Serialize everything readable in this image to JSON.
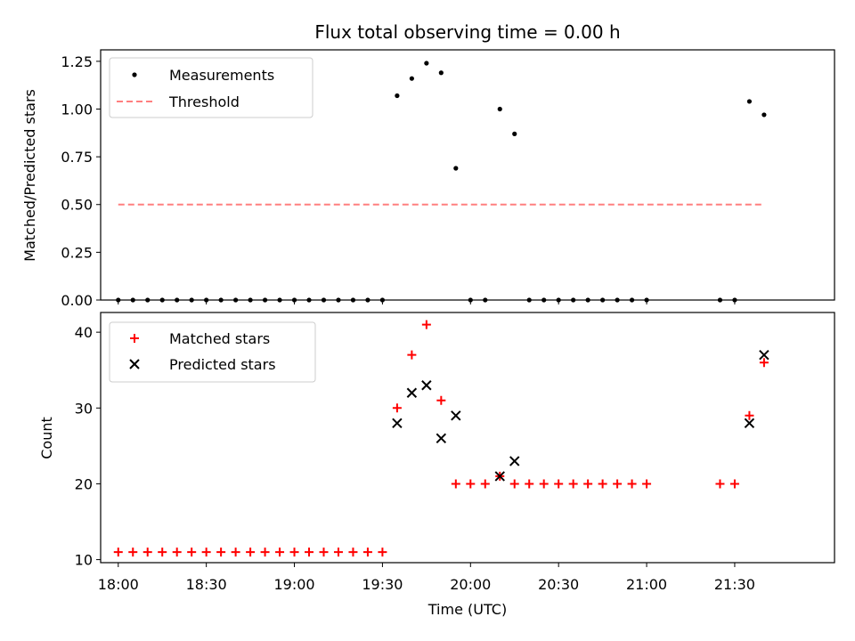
{
  "title": "Flux total observing time = 0.00 h",
  "xlabel": "Time (UTC)",
  "colors": {
    "measurements": "#000000",
    "threshold": "#ff7f7f",
    "matched": "#ff0000",
    "predicted": "#000000",
    "axes": "#000000",
    "legend_border": "#cccccc"
  },
  "chart_data": [
    {
      "type": "scatter",
      "panel": "top",
      "ylabel": "Matched/Predicted stars",
      "xlim": [
        "17:54",
        "22:04"
      ],
      "ylim": [
        0,
        1.31
      ],
      "yticks": [
        0,
        0.25,
        0.5,
        0.75,
        1.0,
        1.25
      ],
      "ytick_labels": [
        "0.00",
        "0.25",
        "0.50",
        "0.75",
        "1.00",
        "1.25"
      ],
      "legend_location": "top-left",
      "series": [
        {
          "name": "Measurements",
          "marker": "dot",
          "points": [
            [
              "18:00",
              0
            ],
            [
              "18:05",
              0
            ],
            [
              "18:10",
              0
            ],
            [
              "18:15",
              0
            ],
            [
              "18:20",
              0
            ],
            [
              "18:25",
              0
            ],
            [
              "18:30",
              0
            ],
            [
              "18:35",
              0
            ],
            [
              "18:40",
              0
            ],
            [
              "18:45",
              0
            ],
            [
              "18:50",
              0
            ],
            [
              "18:55",
              0
            ],
            [
              "19:00",
              0
            ],
            [
              "19:05",
              0
            ],
            [
              "19:10",
              0
            ],
            [
              "19:15",
              0
            ],
            [
              "19:20",
              0
            ],
            [
              "19:25",
              0
            ],
            [
              "19:30",
              0
            ],
            [
              "19:35",
              1.07
            ],
            [
              "19:40",
              1.16
            ],
            [
              "19:45",
              1.24
            ],
            [
              "19:50",
              1.19
            ],
            [
              "19:55",
              0.69
            ],
            [
              "20:00",
              0
            ],
            [
              "20:05",
              0
            ],
            [
              "20:10",
              1.0
            ],
            [
              "20:15",
              0.87
            ],
            [
              "20:20",
              0
            ],
            [
              "20:25",
              0
            ],
            [
              "20:30",
              0
            ],
            [
              "20:35",
              0
            ],
            [
              "20:40",
              0
            ],
            [
              "20:45",
              0
            ],
            [
              "20:50",
              0
            ],
            [
              "20:55",
              0
            ],
            [
              "21:00",
              0
            ],
            [
              "21:25",
              0
            ],
            [
              "21:30",
              0
            ],
            [
              "21:35",
              1.04
            ],
            [
              "21:40",
              0.97
            ]
          ]
        },
        {
          "name": "Threshold",
          "marker": "dashed-line",
          "points": [
            [
              "18:00",
              0.5
            ],
            [
              "21:40",
              0.5
            ]
          ]
        }
      ]
    },
    {
      "type": "scatter",
      "panel": "bottom",
      "ylabel": "Count",
      "xlim": [
        "17:54",
        "22:04"
      ],
      "ylim": [
        9.6,
        42.6
      ],
      "yticks": [
        10,
        20,
        30,
        40
      ],
      "ytick_labels": [
        "10",
        "20",
        "30",
        "40"
      ],
      "xticks": [
        "18:00",
        "18:30",
        "19:00",
        "19:30",
        "20:00",
        "20:30",
        "21:00",
        "21:30"
      ],
      "legend_location": "top-left",
      "series": [
        {
          "name": "Matched stars",
          "marker": "plus",
          "points": [
            [
              "18:00",
              11
            ],
            [
              "18:05",
              11
            ],
            [
              "18:10",
              11
            ],
            [
              "18:15",
              11
            ],
            [
              "18:20",
              11
            ],
            [
              "18:25",
              11
            ],
            [
              "18:30",
              11
            ],
            [
              "18:35",
              11
            ],
            [
              "18:40",
              11
            ],
            [
              "18:45",
              11
            ],
            [
              "18:50",
              11
            ],
            [
              "18:55",
              11
            ],
            [
              "19:00",
              11
            ],
            [
              "19:05",
              11
            ],
            [
              "19:10",
              11
            ],
            [
              "19:15",
              11
            ],
            [
              "19:20",
              11
            ],
            [
              "19:25",
              11
            ],
            [
              "19:30",
              11
            ],
            [
              "19:35",
              30
            ],
            [
              "19:40",
              37
            ],
            [
              "19:45",
              41
            ],
            [
              "19:50",
              31
            ],
            [
              "19:55",
              20
            ],
            [
              "20:00",
              20
            ],
            [
              "20:05",
              20
            ],
            [
              "20:10",
              21
            ],
            [
              "20:15",
              20
            ],
            [
              "20:20",
              20
            ],
            [
              "20:25",
              20
            ],
            [
              "20:30",
              20
            ],
            [
              "20:35",
              20
            ],
            [
              "20:40",
              20
            ],
            [
              "20:45",
              20
            ],
            [
              "20:50",
              20
            ],
            [
              "20:55",
              20
            ],
            [
              "21:00",
              20
            ],
            [
              "21:25",
              20
            ],
            [
              "21:30",
              20
            ],
            [
              "21:35",
              29
            ],
            [
              "21:40",
              36
            ]
          ]
        },
        {
          "name": "Predicted stars",
          "marker": "cross",
          "points": [
            [
              "19:35",
              28
            ],
            [
              "19:40",
              32
            ],
            [
              "19:45",
              33
            ],
            [
              "19:50",
              26
            ],
            [
              "19:55",
              29
            ],
            [
              "20:10",
              21
            ],
            [
              "20:15",
              23
            ],
            [
              "21:35",
              28
            ],
            [
              "21:40",
              37
            ]
          ]
        }
      ]
    }
  ]
}
